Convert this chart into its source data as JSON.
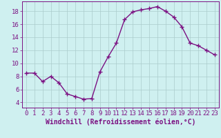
{
  "x": [
    0,
    1,
    2,
    3,
    4,
    5,
    6,
    7,
    8,
    9,
    10,
    11,
    12,
    13,
    14,
    15,
    16,
    17,
    18,
    19,
    20,
    21,
    22,
    23
  ],
  "y": [
    8.5,
    8.5,
    7.2,
    8.0,
    7.0,
    5.3,
    4.9,
    4.5,
    4.6,
    8.7,
    11.0,
    13.1,
    16.7,
    17.9,
    18.2,
    18.4,
    18.7,
    18.0,
    17.1,
    15.6,
    13.1,
    12.7,
    12.0,
    11.3
  ],
  "line_color": "#7B1082",
  "marker": "+",
  "marker_size": 4,
  "bg_color": "#cff0f0",
  "grid_color": "#aacccc",
  "xlabel": "Windchill (Refroidissement éolien,°C)",
  "xlabel_fontsize": 7,
  "ylabel_values": [
    4,
    6,
    8,
    10,
    12,
    14,
    16,
    18
  ],
  "xlim": [
    -0.5,
    23.5
  ],
  "ylim": [
    3.2,
    19.5
  ],
  "tick_fontsize": 6.5,
  "line_width": 1.0
}
